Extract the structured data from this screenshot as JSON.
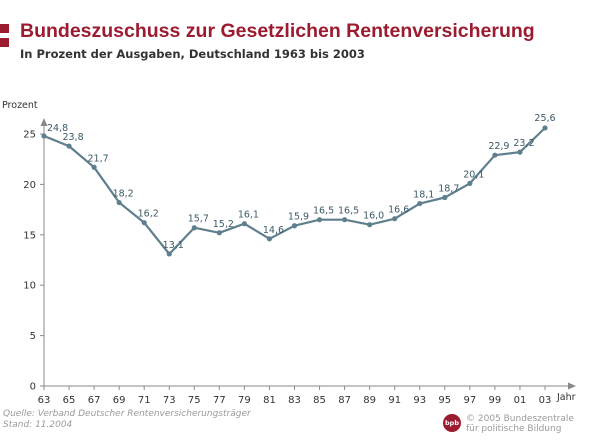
{
  "colors": {
    "accent": "#9b1b30",
    "line": "#5f7f8e",
    "axis": "#8a8a8a",
    "label": "#3d5a66",
    "text": "#333333",
    "muted": "#9a9a9a"
  },
  "header": {
    "title": "Bundeszuschuss zur Gesetzlichen Rentenversicherung",
    "subtitle": "In Prozent der Ausgaben, Deutschland 1963 bis 2003"
  },
  "chart_data": {
    "type": "line",
    "title": "Bundeszuschuss zur Gesetzlichen Rentenversicherung",
    "subtitle": "In Prozent der Ausgaben, Deutschland 1963 bis 2003",
    "xlabel": "Jahr",
    "ylabel": "Prozent",
    "x": [
      "63",
      "65",
      "67",
      "69",
      "71",
      "73",
      "75",
      "77",
      "79",
      "81",
      "83",
      "85",
      "87",
      "89",
      "91",
      "93",
      "95",
      "97",
      "99",
      "01",
      "03"
    ],
    "series": [
      {
        "values": [
          24.8,
          23.8,
          21.7,
          18.2,
          16.2,
          13.1,
          15.7,
          15.2,
          16.1,
          14.6,
          15.9,
          16.5,
          16.5,
          16.0,
          16.6,
          18.1,
          18.7,
          20.1,
          22.9,
          23.2,
          25.6
        ],
        "labels": [
          "24,8",
          "23,8",
          "21,7",
          "18,2",
          "16,2",
          "13,1",
          "15,7",
          "15,2",
          "16,1",
          "14,6",
          "15,9",
          "16,5",
          "16,5",
          "16,0",
          "16,6",
          "18,1",
          "18,7",
          "20,1",
          "22,9",
          "23,2",
          "25,6"
        ]
      }
    ],
    "yticks": [
      0,
      5,
      10,
      15,
      20,
      25
    ],
    "ylim": [
      0,
      25
    ],
    "grid": false,
    "legend": "none"
  },
  "footer": {
    "source": "Quelle: Verband Deutscher Rentenversicherungsträger",
    "date": "Stand: 11.2004",
    "logo_text": "bpb",
    "copyright_line1": "© 2005 Bundeszentrale",
    "copyright_line2": "für politische Bildung"
  }
}
